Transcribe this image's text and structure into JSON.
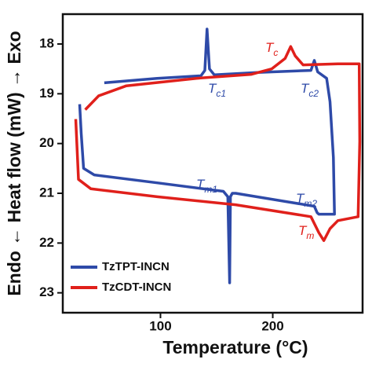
{
  "chart_data": {
    "type": "line",
    "x_label": "Temperature (°C)",
    "y_label": "Endo ← Heat flow (mW) → Exo",
    "xlim": [
      13,
      280
    ],
    "xticks": [
      100,
      200
    ],
    "ylim": [
      17.4,
      23.4
    ],
    "yticks": [
      18,
      19,
      20,
      21,
      22,
      23
    ],
    "y_inverted": true,
    "legend": "lower left",
    "series": [
      {
        "name": "TzTPT-INCN",
        "color": "#2e4aa8",
        "x": [
          50,
          97,
          136,
          139.5,
          141.5,
          143.6,
          148,
          188,
          234,
          237,
          240,
          248,
          251,
          254,
          255,
          248,
          241,
          239.5,
          237,
          167,
          164,
          162.3,
          161.6,
          160,
          156,
          97,
          41,
          31.5,
          29.4,
          28
        ],
        "values": [
          18.78,
          18.69,
          18.64,
          18.53,
          17.7,
          18.5,
          18.62,
          18.57,
          18.53,
          18.33,
          18.56,
          18.69,
          19.16,
          20.28,
          21.42,
          21.42,
          21.42,
          21.39,
          21.26,
          21.0,
          21.0,
          21.07,
          22.8,
          21.07,
          20.96,
          20.79,
          20.63,
          20.5,
          19.8,
          19.21
        ]
      },
      {
        "name": "TzCDT-INCN",
        "color": "#e0201b",
        "x": [
          33,
          45,
          69.6,
          132,
          181,
          199,
          211,
          216,
          220,
          227,
          258,
          277,
          277.5,
          276,
          258,
          251,
          245.5,
          241,
          234,
          167,
          97,
          38,
          27,
          24.5
        ],
        "values": [
          19.32,
          19.04,
          18.84,
          18.69,
          18.61,
          18.5,
          18.29,
          18.05,
          18.24,
          18.42,
          18.4,
          18.4,
          19.96,
          21.47,
          21.55,
          21.71,
          21.95,
          21.79,
          21.47,
          21.23,
          21.07,
          20.91,
          20.72,
          19.51
        ]
      }
    ],
    "annotations": [
      {
        "text": "T",
        "subscript": "c1",
        "color": "#2e4aa8"
      },
      {
        "text": "T",
        "subscript": "c2",
        "color": "#2e4aa8"
      },
      {
        "text": "T",
        "subscript": "c",
        "color": "#e0201b"
      },
      {
        "text": "T",
        "subscript": "m1",
        "color": "#2e4aa8"
      },
      {
        "text": "T",
        "subscript": "m2",
        "color": "#2e4aa8"
      },
      {
        "text": "T",
        "subscript": "m",
        "color": "#e0201b"
      }
    ]
  }
}
